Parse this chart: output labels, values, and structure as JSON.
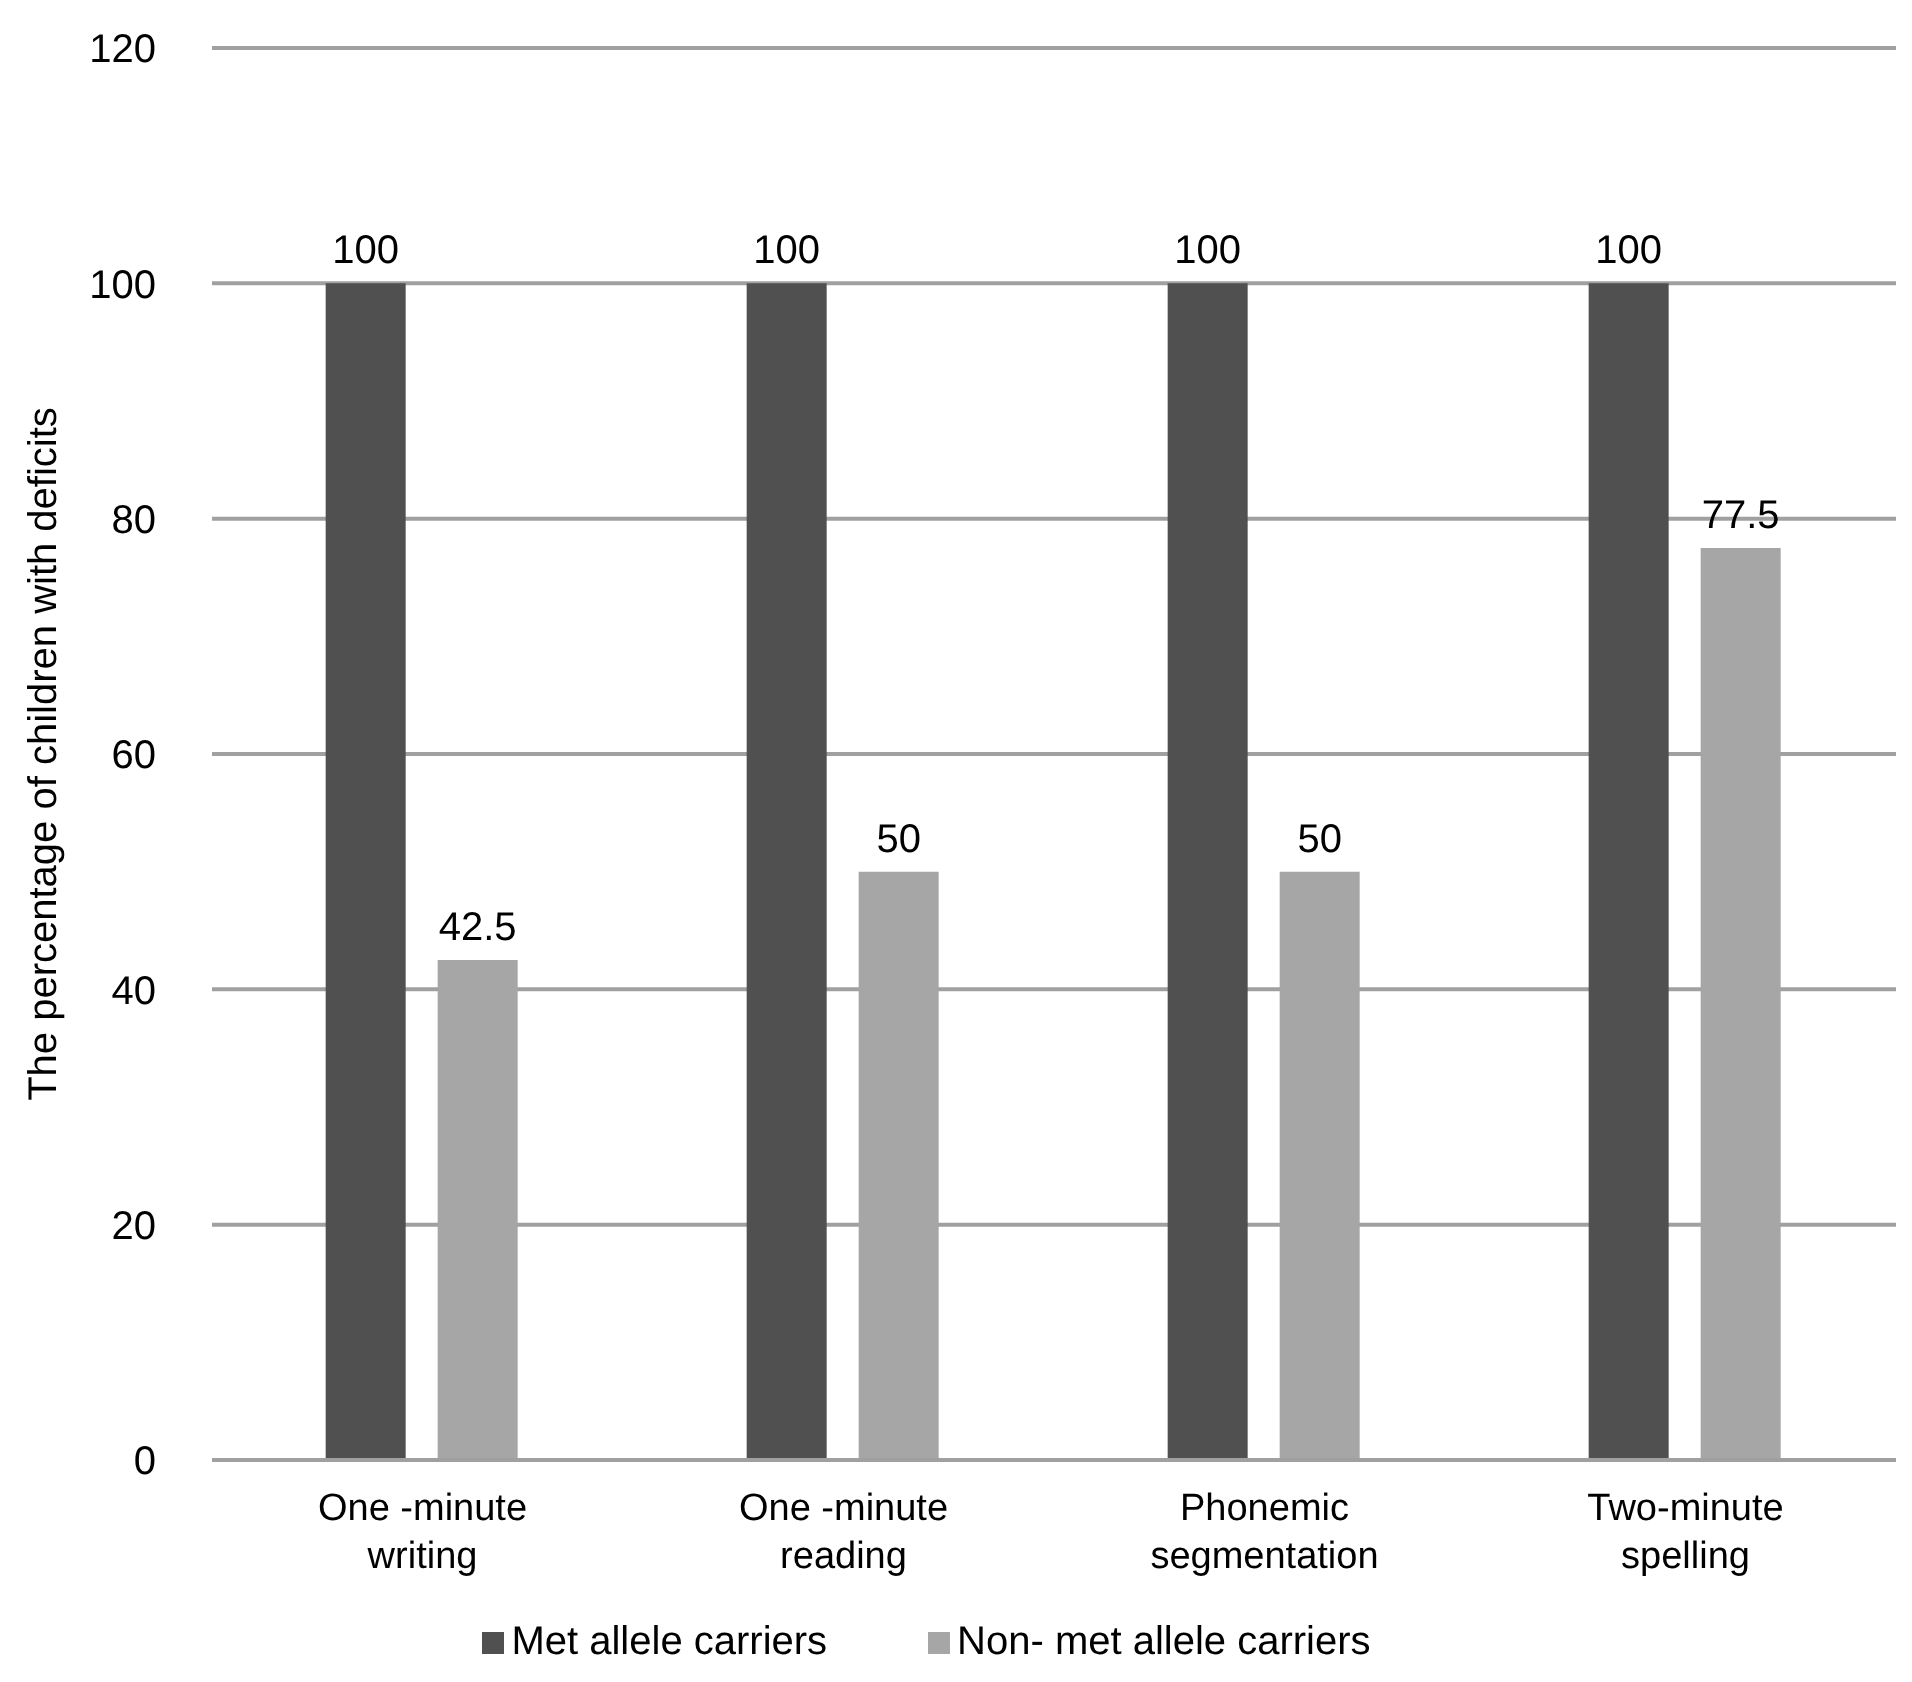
{
  "chart_data": {
    "type": "bar",
    "ylabel": "The percentage of children with deficits",
    "categories": [
      "One -minute writing",
      "One -minute reading",
      "Phonemic segmentation",
      "Two-minute spelling"
    ],
    "series": [
      {
        "name": "Met allele carriers",
        "color": "#505050",
        "values": [
          100,
          100,
          100,
          100
        ]
      },
      {
        "name": "Non- met allele carriers",
        "color": "#a6a6a6",
        "values": [
          42.5,
          50,
          50,
          77.5
        ]
      }
    ],
    "ylim": [
      0,
      120
    ],
    "yticks": [
      0,
      20,
      40,
      60,
      80,
      100,
      120
    ],
    "grid": "y",
    "legend": "bottom",
    "data_labels": true
  }
}
